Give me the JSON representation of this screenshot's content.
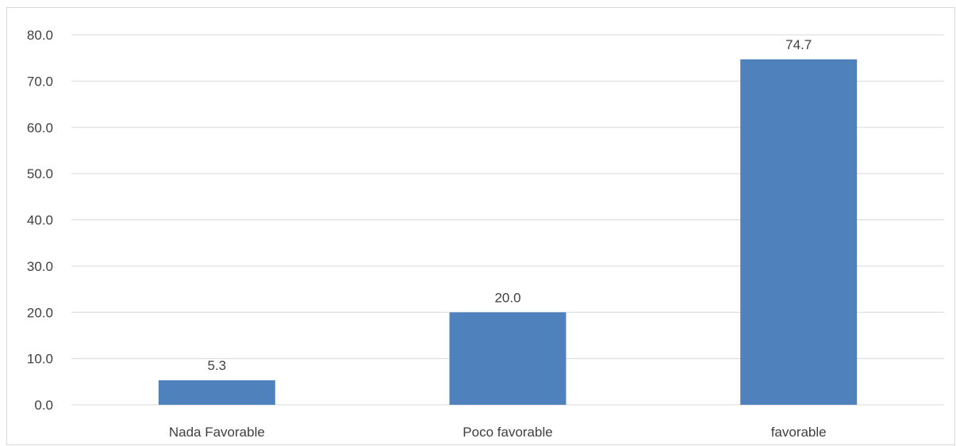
{
  "chart_data": {
    "type": "bar",
    "categories": [
      "Nada Favorable",
      "Poco favorable",
      "favorable"
    ],
    "values": [
      5.3,
      20.0,
      74.7
    ],
    "data_labels": [
      "5.3",
      "20.0",
      "74.7"
    ],
    "ylim": [
      0,
      80
    ],
    "yticks": [
      0,
      10,
      20,
      30,
      40,
      50,
      60,
      70,
      80
    ],
    "ytick_labels": [
      "0.0",
      "10.0",
      "20.0",
      "30.0",
      "40.0",
      "50.0",
      "60.0",
      "70.0",
      "80.0"
    ],
    "grid": true,
    "legend": "none",
    "bar_color": "#4F81BD",
    "grid_color": "#d9d9d9"
  }
}
